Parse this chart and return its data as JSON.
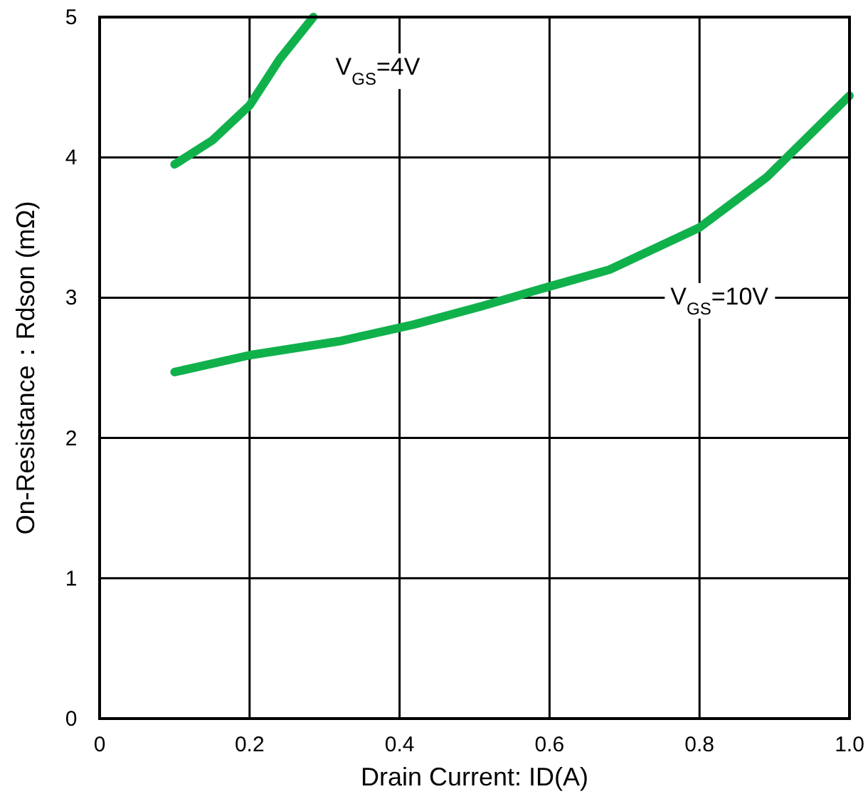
{
  "chart_data": {
    "type": "line",
    "xlabel": "Drain Current: ID(A)",
    "ylabel": "On-Resistance：Rdson (mΩ)",
    "xlim": [
      0,
      1.0
    ],
    "ylim": [
      0,
      5
    ],
    "xticks": [
      0,
      0.2,
      0.4,
      0.6,
      0.8,
      {
        "value": 1.0,
        "label": "1.0"
      }
    ],
    "yticks": [
      0,
      1,
      2,
      3,
      4,
      5
    ],
    "grid": true,
    "legend": false,
    "marker": "none",
    "line_style": "solid",
    "series": [
      {
        "name": "V$_{GS}$=4V",
        "color": "#10b14b",
        "x": [
          0.1,
          0.15,
          0.2,
          0.24,
          0.285
        ],
        "values": [
          3.95,
          4.12,
          4.37,
          4.7,
          5.0
        ]
      },
      {
        "name": "V$_{GS}$=10V",
        "color": "#10b14b",
        "x": [
          0.1,
          0.2,
          0.32,
          0.42,
          0.51,
          0.6,
          0.68,
          0.8,
          0.89,
          1.0
        ],
        "values": [
          2.47,
          2.59,
          2.69,
          2.81,
          2.94,
          3.08,
          3.2,
          3.5,
          3.86,
          4.44
        ]
      }
    ]
  }
}
